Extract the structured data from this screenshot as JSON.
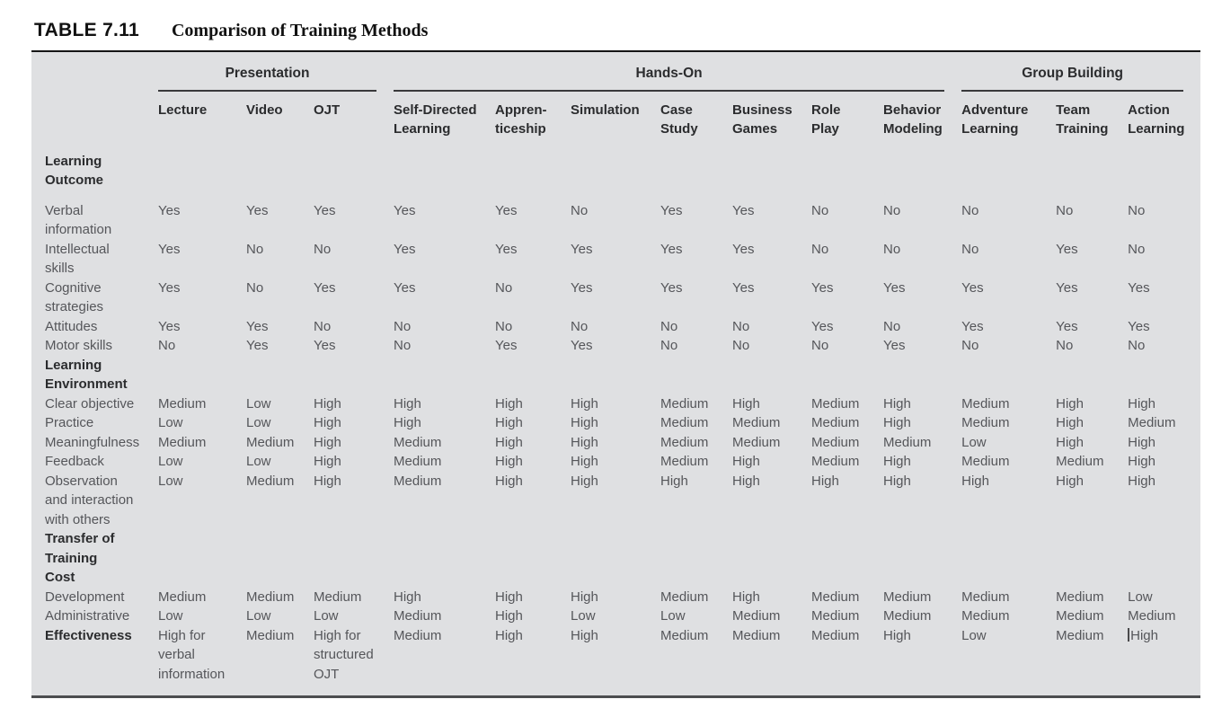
{
  "title": {
    "label": "TABLE 7.11",
    "caption": "Comparison of Training Methods"
  },
  "colors": {
    "table_background": "#dfe0e2",
    "body_text": "#55565a",
    "heading_text": "#2b2c2e",
    "rule": "#39393b"
  },
  "table": {
    "groups": [
      {
        "label": "Presentation",
        "span": 3
      },
      {
        "label": "Hands-On",
        "span": 7
      },
      {
        "label": "Group Building",
        "span": 3
      }
    ],
    "columns": [
      "Lecture",
      "Video",
      "OJT",
      "Self-Directed\nLearning",
      "Appren-\nticeship",
      "Simulation",
      "Case\nStudy",
      "Business\nGames",
      "Role\nPlay",
      "Behavior\nModeling",
      "Adventure\nLearning",
      "Team\nTraining",
      "Action\nLearning"
    ],
    "sections": [
      {
        "header": "Learning\nOutcome",
        "rows": [
          {
            "label": "Verbal\ninformation",
            "values": [
              "Yes",
              "Yes",
              "Yes",
              "Yes",
              "Yes",
              "No",
              "Yes",
              "Yes",
              "No",
              "No",
              "No",
              "No",
              "No"
            ]
          },
          {
            "label": "Intellectual\nskills",
            "values": [
              "Yes",
              "No",
              "No",
              "Yes",
              "Yes",
              "Yes",
              "Yes",
              "Yes",
              "No",
              "No",
              "No",
              "Yes",
              "No"
            ]
          },
          {
            "label": "Cognitive\nstrategies",
            "values": [
              "Yes",
              "No",
              "Yes",
              "Yes",
              "No",
              "Yes",
              "Yes",
              "Yes",
              "Yes",
              "Yes",
              "Yes",
              "Yes",
              "Yes"
            ]
          },
          {
            "label": "Attitudes",
            "values": [
              "Yes",
              "Yes",
              "No",
              "No",
              "No",
              "No",
              "No",
              "No",
              "Yes",
              "No",
              "Yes",
              "Yes",
              "Yes"
            ]
          },
          {
            "label": "Motor skills",
            "values": [
              "No",
              "Yes",
              "Yes",
              "No",
              "Yes",
              "Yes",
              "No",
              "No",
              "No",
              "Yes",
              "No",
              "No",
              "No"
            ]
          }
        ]
      },
      {
        "header": "Learning\nEnvironment",
        "rows": [
          {
            "label": "Clear objective",
            "values": [
              "Medium",
              "Low",
              "High",
              "High",
              "High",
              "High",
              "Medium",
              "High",
              "Medium",
              "High",
              "Medium",
              "High",
              "High"
            ]
          },
          {
            "label": "Practice",
            "values": [
              "Low",
              "Low",
              "High",
              "High",
              "High",
              "High",
              "Medium",
              "Medium",
              "Medium",
              "High",
              "Medium",
              "High",
              "Medium"
            ]
          },
          {
            "label": "Meaningfulness",
            "values": [
              "Medium",
              "Medium",
              "High",
              "Medium",
              "High",
              "High",
              "Medium",
              "Medium",
              "Medium",
              "Medium",
              "Low",
              "High",
              "High"
            ]
          },
          {
            "label": "Feedback",
            "values": [
              "Low",
              "Low",
              "High",
              "Medium",
              "High",
              "High",
              "Medium",
              "High",
              "Medium",
              "High",
              "Medium",
              "Medium",
              "High"
            ]
          },
          {
            "label": "Observation\nand interaction\nwith others",
            "values": [
              "Low",
              "Medium",
              "High",
              "Medium",
              "High",
              "High",
              "High",
              "High",
              "High",
              "High",
              "High",
              "High",
              "High"
            ]
          }
        ]
      },
      {
        "header": "Transfer of\nTraining",
        "rows": []
      },
      {
        "header": "Cost",
        "rows": [
          {
            "label": "Development",
            "values": [
              "Medium",
              "Medium",
              "Medium",
              "High",
              "High",
              "High",
              "Medium",
              "High",
              "Medium",
              "Medium",
              "Medium",
              "Medium",
              "Low"
            ]
          },
          {
            "label": "Administrative",
            "values": [
              "Low",
              "Low",
              "Low",
              "Medium",
              "High",
              "Low",
              "Low",
              "Medium",
              "Medium",
              "Medium",
              "Medium",
              "Medium",
              "Medium"
            ]
          },
          {
            "label": "Effectiveness",
            "bold": true,
            "caret_before_index": 12,
            "values": [
              "High for\nverbal\ninformation",
              "Medium",
              "High for\nstructured\nOJT",
              "Medium",
              "High",
              "High",
              "Medium",
              "Medium",
              "Medium",
              "High",
              "Low",
              "Medium",
              "High"
            ]
          }
        ]
      }
    ]
  }
}
